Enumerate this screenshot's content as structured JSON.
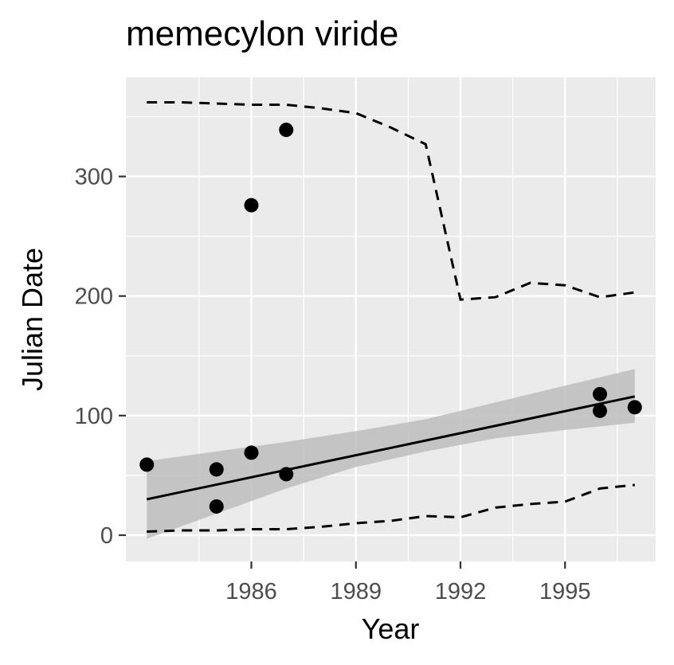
{
  "chart_data": {
    "type": "scatter",
    "title": "memecylon viride",
    "xlabel": "Year",
    "ylabel": "Julian Date",
    "xlim": [
      1982.4,
      1997.6
    ],
    "ylim": [
      -22,
      383
    ],
    "x_ticks": [
      1986,
      1989,
      1992,
      1995
    ],
    "x_tick_labels": [
      "1986",
      "1989",
      "1992",
      "1995"
    ],
    "x_minor_ticks": [
      1984.5,
      1987.5,
      1990.5,
      1993.5,
      1996.5
    ],
    "y_ticks": [
      0,
      100,
      200,
      300
    ],
    "y_tick_labels": [
      "0",
      "100",
      "200",
      "300"
    ],
    "y_minor_ticks": [
      50,
      150,
      250,
      350
    ],
    "grid": true,
    "panel_background": "#ebebeb",
    "grid_color": "#ffffff",
    "point_color": "#000000",
    "ribbon_color": "#bdbdbd",
    "points": [
      {
        "x": 1983,
        "y": 59
      },
      {
        "x": 1985,
        "y": 55
      },
      {
        "x": 1985,
        "y": 24
      },
      {
        "x": 1986,
        "y": 276
      },
      {
        "x": 1986,
        "y": 69
      },
      {
        "x": 1987,
        "y": 339
      },
      {
        "x": 1987,
        "y": 51
      },
      {
        "x": 1996,
        "y": 118
      },
      {
        "x": 1996,
        "y": 104
      },
      {
        "x": 1997,
        "y": 107
      }
    ],
    "trend_line": {
      "x": [
        1983,
        1997
      ],
      "y": [
        30,
        116
      ]
    },
    "confidence_band": {
      "x": [
        1983,
        1985,
        1987,
        1989,
        1991,
        1993,
        1995,
        1997
      ],
      "lower": [
        -3,
        18,
        39,
        57,
        70,
        81,
        88,
        94
      ],
      "upper": [
        62,
        70,
        78,
        87,
        97,
        111,
        125,
        139
      ]
    },
    "upper_quantile": {
      "x": [
        1983,
        1984,
        1985,
        1986,
        1987,
        1988,
        1989,
        1990,
        1991,
        1992,
        1993,
        1994,
        1995,
        1996,
        1997
      ],
      "y": [
        362,
        362,
        361,
        360,
        360,
        357,
        353,
        341,
        327,
        197,
        199,
        211,
        209,
        199,
        203
      ]
    },
    "lower_quantile": {
      "x": [
        1983,
        1984,
        1985,
        1986,
        1987,
        1988,
        1989,
        1990,
        1991,
        1992,
        1993,
        1994,
        1995,
        1996,
        1997
      ],
      "y": [
        3,
        4,
        4,
        5,
        5,
        7,
        10,
        12,
        16,
        15,
        23,
        26,
        28,
        39,
        42
      ]
    }
  }
}
